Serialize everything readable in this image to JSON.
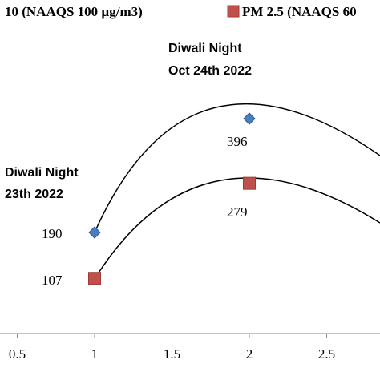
{
  "chart_data": {
    "type": "scatter",
    "legend": {
      "placement": "top",
      "entries": [
        {
          "label": "10 (NAAQS 100 µg/m3)",
          "marker": "diamond",
          "color": "#4a7ebb"
        },
        {
          "label": "PM 2.5 (NAAQS 60",
          "marker": "square",
          "color": "#c0504d"
        }
      ]
    },
    "series": [
      {
        "marker": "diamond",
        "color": "#4a7ebb",
        "x": [
          1,
          2
        ],
        "y": [
          190,
          396
        ]
      },
      {
        "marker": "square",
        "color": "#c0504d",
        "x": [
          1,
          2
        ],
        "y": [
          107,
          279
        ]
      }
    ],
    "data_labels": [
      {
        "text": "190",
        "series": 0,
        "point": 0
      },
      {
        "text": "396",
        "series": 0,
        "point": 1
      },
      {
        "text": "107",
        "series": 1,
        "point": 0
      },
      {
        "text": "279",
        "series": 1,
        "point": 1
      }
    ],
    "annotations": [
      {
        "lines": [
          "Diwali Night",
          "Oct 24th 2022"
        ],
        "x": 2
      },
      {
        "lines": [
          "Diwali Night",
          "23th 2022"
        ],
        "x": 1
      }
    ],
    "x_axis": {
      "ticks": [
        0.5,
        1,
        1.5,
        2,
        2.5
      ],
      "tick_labels": [
        "0.5",
        "1",
        "1.5",
        "2",
        "2.5"
      ],
      "range": [
        0.45,
        2.85
      ]
    },
    "y_range": [
      0,
      600
    ],
    "trendline": "polynomial",
    "grid": false
  }
}
